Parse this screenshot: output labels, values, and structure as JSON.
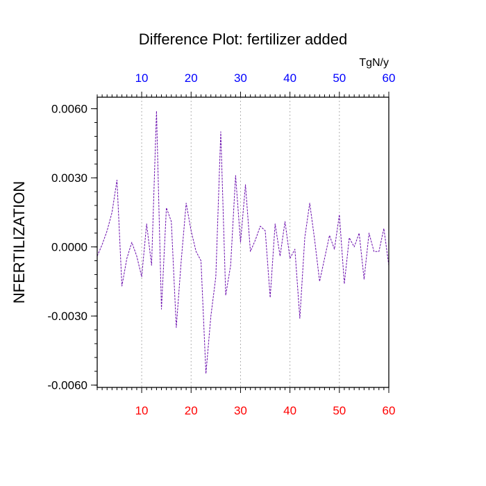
{
  "chart_data": {
    "type": "line",
    "title": "Difference Plot: fertilizer added",
    "ylabel": "NFERTILIZATION",
    "top_axis_units": "TgN/y",
    "xlim": [
      1,
      60
    ],
    "ylim": [
      -0.0061,
      0.0065
    ],
    "x_tick_labels": [
      "10",
      "20",
      "30",
      "40",
      "50",
      "60"
    ],
    "x_tick_values": [
      10,
      20,
      30,
      40,
      50,
      60
    ],
    "y_tick_labels": [
      "0.0060",
      "0.0030",
      "0.0000",
      "-0.0030",
      "-0.0060"
    ],
    "y_tick_values": [
      0.006,
      0.003,
      0.0,
      -0.003,
      -0.006
    ],
    "grid": "vertical dotted at x ticks",
    "colors": {
      "line": "#6a0dad",
      "bottom_ticks": "#ff0000",
      "top_ticks": "#0000ff",
      "grid": "#b0b0b0"
    },
    "series": [
      {
        "x": [
          1,
          2,
          3,
          4,
          5,
          6,
          7,
          8,
          9,
          10,
          11,
          12,
          13,
          14,
          15,
          16,
          17,
          18,
          19,
          20,
          21,
          22,
          23,
          24,
          25,
          26,
          27,
          28,
          29,
          30,
          31,
          32,
          33,
          34,
          35,
          36,
          37,
          38,
          39,
          40,
          41,
          42,
          43,
          44,
          45,
          46,
          47,
          48,
          49,
          50,
          51,
          52,
          53,
          54,
          55,
          56,
          57,
          58,
          59,
          60
        ],
        "values": [
          -0.0004,
          0.0001,
          0.0007,
          0.0015,
          0.0029,
          -0.0017,
          -0.0005,
          0.0002,
          -0.0004,
          -0.0013,
          0.001,
          -0.0008,
          0.0059,
          -0.0027,
          0.0017,
          0.0011,
          -0.0035,
          -0.0006,
          0.0019,
          0.0007,
          -0.0002,
          -0.0006,
          -0.0055,
          -0.003,
          -0.0013,
          0.005,
          -0.0021,
          -0.0008,
          0.0031,
          0.0002,
          0.0027,
          -0.0002,
          0.0003,
          0.0009,
          0.0007,
          -0.0022,
          0.001,
          -0.0004,
          0.0011,
          -0.0005,
          -0.0001,
          -0.0031,
          0.0004,
          0.0019,
          0.0003,
          -0.0015,
          -0.0005,
          0.0005,
          -0.0001,
          0.0014,
          -0.0016,
          0.0004,
          0.0,
          0.0006,
          -0.0014,
          0.0006,
          -0.0002,
          -0.0002,
          0.0008,
          -0.0008
        ]
      }
    ]
  }
}
